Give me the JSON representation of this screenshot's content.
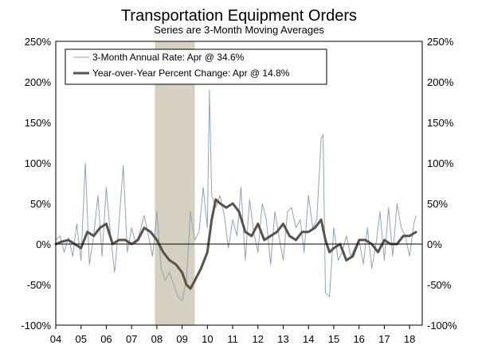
{
  "chart_data": {
    "type": "line",
    "title": "Transportation Equipment Orders",
    "subtitle": "Series are 3-Month Moving Averages",
    "xlabel": "",
    "ylabel": "",
    "ylim": [
      -100,
      250
    ],
    "xlim": [
      2004.0,
      2018.5
    ],
    "y_ticks": [
      250,
      200,
      150,
      100,
      50,
      0,
      -50,
      -100
    ],
    "y_tick_labels": [
      "250%",
      "200%",
      "150%",
      "100%",
      "50%",
      "0%",
      "-50%",
      "-100%"
    ],
    "x_ticks": [
      2004,
      2005,
      2006,
      2007,
      2008,
      2009,
      2010,
      2011,
      2012,
      2013,
      2014,
      2015,
      2016,
      2017,
      2018
    ],
    "x_tick_labels": [
      "04",
      "05",
      "06",
      "07",
      "08",
      "09",
      "10",
      "11",
      "12",
      "13",
      "14",
      "15",
      "16",
      "17",
      "18"
    ],
    "recession": {
      "start": 2007.92,
      "end": 2009.5,
      "color": "#d5d0bf"
    },
    "grid": false,
    "legend_position": "top-left",
    "series": [
      {
        "name": "3-Month Annual Rate: Apr @ 34.6%",
        "style": "thin",
        "color": "#8fa3b8",
        "x": [
          2004.0,
          2004.17,
          2004.33,
          2004.5,
          2004.67,
          2004.83,
          2005.0,
          2005.17,
          2005.33,
          2005.5,
          2005.67,
          2005.83,
          2006.0,
          2006.17,
          2006.33,
          2006.5,
          2006.67,
          2006.83,
          2007.0,
          2007.17,
          2007.33,
          2007.5,
          2007.67,
          2007.83,
          2008.0,
          2008.17,
          2008.33,
          2008.5,
          2008.67,
          2008.83,
          2009.0,
          2009.17,
          2009.33,
          2009.5,
          2009.67,
          2009.83,
          2010.0,
          2010.08,
          2010.17,
          2010.33,
          2010.5,
          2010.67,
          2010.83,
          2011.0,
          2011.17,
          2011.33,
          2011.5,
          2011.67,
          2011.83,
          2012.0,
          2012.17,
          2012.33,
          2012.5,
          2012.67,
          2012.83,
          2013.0,
          2013.17,
          2013.33,
          2013.5,
          2013.67,
          2013.83,
          2014.0,
          2014.17,
          2014.33,
          2014.5,
          2014.58,
          2014.67,
          2014.83,
          2015.0,
          2015.17,
          2015.33,
          2015.5,
          2015.67,
          2015.83,
          2016.0,
          2016.17,
          2016.33,
          2016.5,
          2016.67,
          2016.83,
          2017.0,
          2017.17,
          2017.33,
          2017.5,
          2017.67,
          2017.83,
          2018.0,
          2018.17,
          2018.25
        ],
        "values": [
          5,
          10,
          -10,
          8,
          -15,
          25,
          -20,
          100,
          -25,
          10,
          60,
          -15,
          70,
          10,
          -35,
          25,
          97,
          -10,
          20,
          0,
          15,
          35,
          10,
          -15,
          40,
          -30,
          -45,
          -35,
          -50,
          -65,
          -70,
          -45,
          40,
          5,
          15,
          70,
          20,
          190,
          60,
          45,
          60,
          35,
          -5,
          30,
          10,
          70,
          -20,
          55,
          15,
          -10,
          50,
          30,
          -25,
          40,
          10,
          -20,
          40,
          45,
          20,
          30,
          -10,
          60,
          20,
          30,
          130,
          135,
          -60,
          -65,
          20,
          -20,
          -10,
          10,
          -15,
          -5,
          5,
          -25,
          20,
          -30,
          0,
          40,
          -20,
          45,
          -15,
          50,
          20,
          10,
          -15,
          25,
          34.6
        ]
      },
      {
        "name": "Year-over-Year Percent Change: Apr @ 14.8%",
        "style": "thick",
        "color": "#5a5148",
        "x": [
          2004.0,
          2004.25,
          2004.5,
          2004.75,
          2005.0,
          2005.25,
          2005.5,
          2005.75,
          2006.0,
          2006.25,
          2006.5,
          2006.75,
          2007.0,
          2007.25,
          2007.5,
          2007.75,
          2008.0,
          2008.25,
          2008.5,
          2008.75,
          2009.0,
          2009.17,
          2009.33,
          2009.5,
          2009.75,
          2010.0,
          2010.17,
          2010.33,
          2010.5,
          2010.75,
          2011.0,
          2011.25,
          2011.5,
          2011.75,
          2012.0,
          2012.25,
          2012.5,
          2012.75,
          2013.0,
          2013.25,
          2013.5,
          2013.75,
          2014.0,
          2014.25,
          2014.5,
          2014.67,
          2014.83,
          2015.0,
          2015.25,
          2015.5,
          2015.75,
          2016.0,
          2016.25,
          2016.5,
          2016.75,
          2017.0,
          2017.25,
          2017.5,
          2017.75,
          2018.0,
          2018.25
        ],
        "values": [
          0,
          3,
          5,
          0,
          -5,
          15,
          10,
          20,
          25,
          0,
          5,
          5,
          0,
          5,
          20,
          15,
          5,
          -10,
          -20,
          -25,
          -35,
          -50,
          -55,
          -45,
          -30,
          -10,
          30,
          55,
          50,
          45,
          50,
          40,
          15,
          10,
          25,
          5,
          10,
          15,
          25,
          10,
          5,
          15,
          15,
          20,
          30,
          5,
          -10,
          -5,
          0,
          -20,
          -15,
          5,
          5,
          0,
          -10,
          5,
          0,
          0,
          10,
          10,
          14.8
        ]
      }
    ]
  }
}
